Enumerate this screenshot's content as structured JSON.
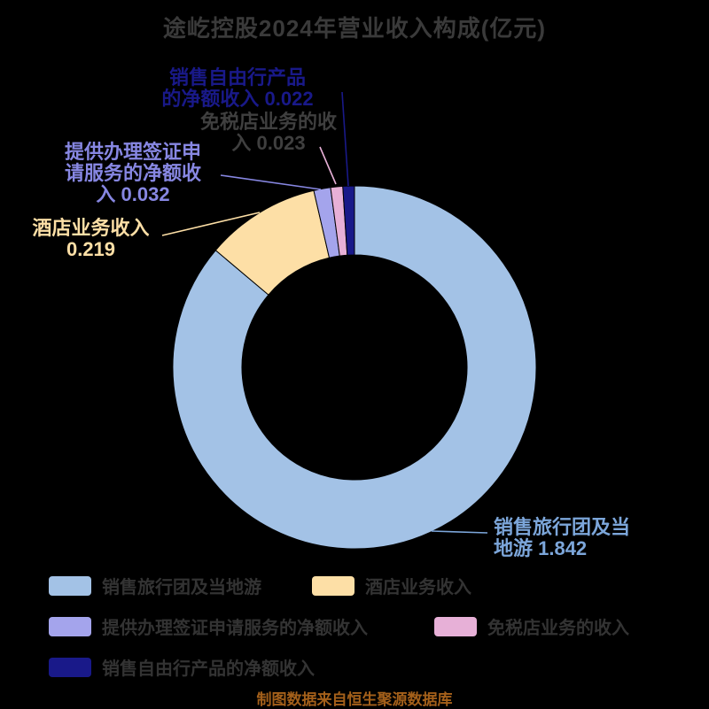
{
  "title": "途屹控股2024年营业收入构成(亿元)",
  "footer": "制图数据来自恒生聚源数据库",
  "chart_data": {
    "type": "pie",
    "donut": true,
    "unit": "亿元",
    "title": "途屹控股2024年营业收入构成(亿元)",
    "start_angle_deg": 0,
    "direction": "clockwise",
    "legend_position": "bottom",
    "total": 2.138,
    "series": [
      {
        "name": "销售旅行团及当地游",
        "value": 1.842,
        "color": "#a3c2e6",
        "label_color": "#7ca6da",
        "leader_color": "#7ca6da",
        "label_lines": [
          "销售旅行团及当",
          "地游 1.842"
        ]
      },
      {
        "name": "酒店业务收入",
        "value": 0.219,
        "color": "#fddfa6",
        "label_color": "#fddfa6",
        "leader_color": "#fddfa6",
        "label_lines": [
          "酒店业务收入",
          "0.219"
        ]
      },
      {
        "name": "提供办理签证申请服务的净额收入",
        "value": 0.032,
        "color": "#a4a4ec",
        "label_color": "#8787e2",
        "leader_color": "#8787e2",
        "label_lines": [
          "提供办理签证申",
          "请服务的净额收",
          "入 0.032"
        ]
      },
      {
        "name": "免税店业务的收入",
        "value": 0.023,
        "color": "#e7b0d7",
        "label_color": "#3f3f3f",
        "leader_color": "#e7b0d7",
        "label_lines": [
          "免税店业务的收",
          "入 0.023"
        ]
      },
      {
        "name": "销售自由行产品的净额收入",
        "value": 0.022,
        "color": "#191989",
        "label_color": "#191989",
        "leader_color": "#191989",
        "label_lines": [
          "销售自由行产品",
          "的净额收入 0.022"
        ]
      }
    ]
  }
}
